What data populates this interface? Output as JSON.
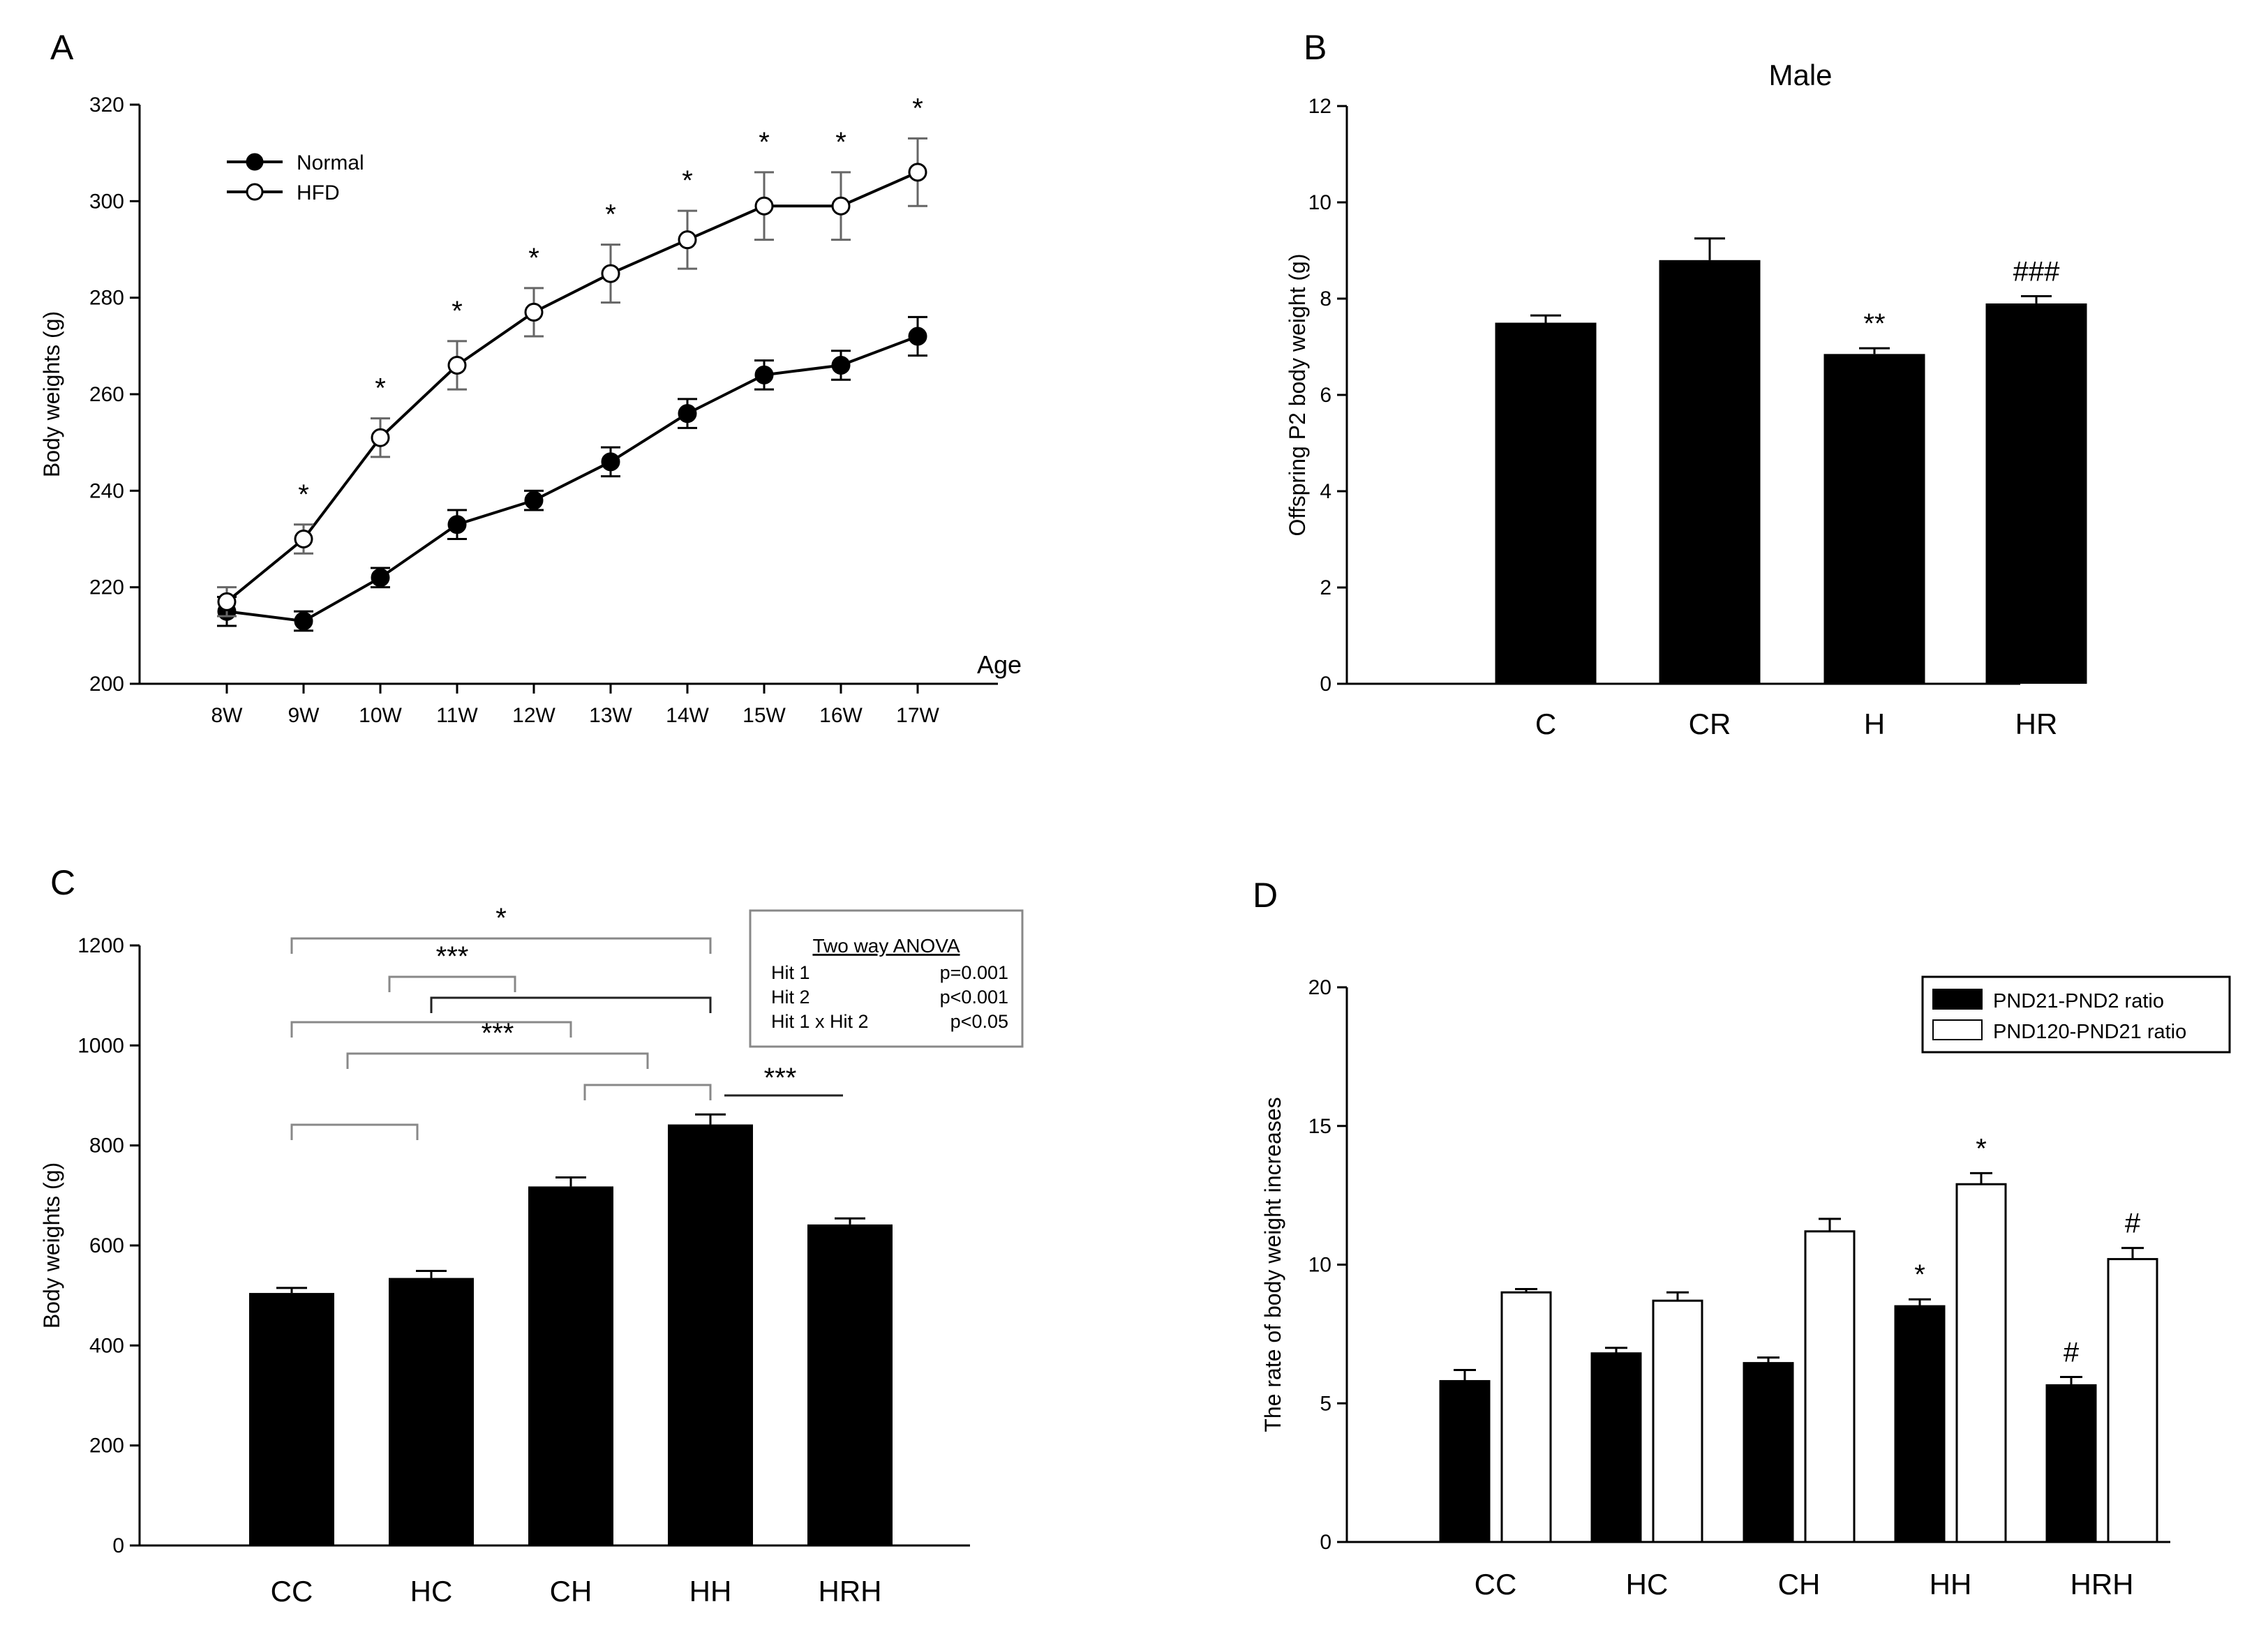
{
  "panels": {
    "A": {
      "letter": "A"
    },
    "B": {
      "letter": "B"
    },
    "C": {
      "letter": "C"
    },
    "D": {
      "letter": "D"
    }
  },
  "chart_data": [
    {
      "id": "A",
      "type": "line",
      "title": "",
      "xlabel": "Age",
      "ylabel": "Body weights (g)",
      "categories": [
        "8W",
        "9W",
        "10W",
        "11W",
        "12W",
        "13W",
        "14W",
        "15W",
        "16W",
        "17W"
      ],
      "ylim": [
        200,
        320
      ],
      "yticks": [
        200,
        220,
        240,
        260,
        280,
        300,
        320
      ],
      "series": [
        {
          "name": "Normal",
          "marker": "filled",
          "values": [
            215,
            213,
            222,
            233,
            238,
            246,
            256,
            264,
            266,
            272
          ],
          "errors": [
            3,
            2,
            2,
            3,
            2,
            3,
            3,
            3,
            3,
            4
          ]
        },
        {
          "name": "HFD",
          "marker": "open",
          "values": [
            217,
            230,
            251,
            266,
            277,
            285,
            292,
            299,
            299,
            306
          ],
          "errors": [
            3,
            3,
            4,
            5,
            5,
            6,
            6,
            7,
            7,
            7
          ]
        }
      ],
      "significance": [
        "",
        "*",
        "*",
        "*",
        "*",
        "*",
        "*",
        "*",
        "*",
        "*"
      ],
      "legend": {
        "placement": "top-left",
        "entries": [
          "Normal",
          "HFD"
        ]
      }
    },
    {
      "id": "B",
      "type": "bar",
      "title": "Male",
      "xlabel": "",
      "ylabel": "Offspring P2 body weight (g)",
      "categories": [
        "C",
        "CR",
        "H",
        "HR"
      ],
      "values": [
        7.5,
        8.8,
        6.85,
        7.9
      ],
      "errors": [
        0.15,
        0.45,
        0.12,
        0.15
      ],
      "annotations": [
        "",
        "",
        "**",
        "###"
      ],
      "ylim": [
        0,
        12
      ],
      "yticks": [
        0,
        2,
        4,
        6,
        8,
        10,
        12
      ]
    },
    {
      "id": "C",
      "type": "bar",
      "title": "",
      "xlabel": "",
      "ylabel": "Body weights (g)",
      "categories": [
        "CC",
        "HC",
        "CH",
        "HH",
        "HRH"
      ],
      "values": [
        505,
        535,
        718,
        842,
        642
      ],
      "errors": [
        10,
        14,
        18,
        20,
        12
      ],
      "ylim": [
        0,
        1200
      ],
      "yticks": [
        0,
        200,
        400,
        600,
        800,
        1000,
        1200
      ],
      "stats_box": {
        "title": "Two way ANOVA",
        "rows": [
          {
            "label": "Hit 1",
            "value": "p=0.001"
          },
          {
            "label": "Hit 2",
            "value": "p<0.001"
          },
          {
            "label": "Hit 1 x Hit 2",
            "value": "p<0.05"
          }
        ]
      },
      "brackets": [
        {
          "from": 0,
          "to": 3,
          "label": "*"
        },
        {
          "from": 0.7,
          "to": 1.6,
          "label": "***"
        },
        {
          "from": 1,
          "to": 3,
          "label": ""
        },
        {
          "from": 0,
          "to": 2,
          "label": ""
        },
        {
          "from": 0.4,
          "to": 2.55,
          "label": "***"
        },
        {
          "from": 2.1,
          "to": 3,
          "label": ""
        },
        {
          "from": 0,
          "to": 0.9,
          "label": ""
        },
        {
          "from": 3,
          "to": 4,
          "label": "***"
        }
      ]
    },
    {
      "id": "D",
      "type": "bar",
      "title": "",
      "xlabel": "",
      "ylabel": "The rate of body weight increases",
      "categories": [
        "CC",
        "HC",
        "CH",
        "HH",
        "HRH"
      ],
      "ylim": [
        0,
        20
      ],
      "yticks": [
        0,
        5,
        10,
        15,
        20
      ],
      "series": [
        {
          "name": "PND21-PND2 ratio",
          "fill": "black",
          "values": [
            5.8,
            6.8,
            6.45,
            8.5,
            5.65
          ],
          "errors": [
            0.4,
            0.2,
            0.2,
            0.25,
            0.3
          ],
          "annotations": [
            "",
            "",
            "",
            "*",
            "#"
          ]
        },
        {
          "name": "PND120-PND21 ratio",
          "fill": "white",
          "values": [
            9.0,
            8.7,
            11.2,
            12.9,
            10.2
          ],
          "errors": [
            0.12,
            0.3,
            0.45,
            0.4,
            0.4
          ],
          "annotations": [
            "",
            "",
            "",
            "*",
            "#"
          ]
        }
      ],
      "legend": {
        "placement": "top-right",
        "entries": [
          "PND21-PND2 ratio",
          "PND120-PND21 ratio"
        ]
      }
    }
  ]
}
